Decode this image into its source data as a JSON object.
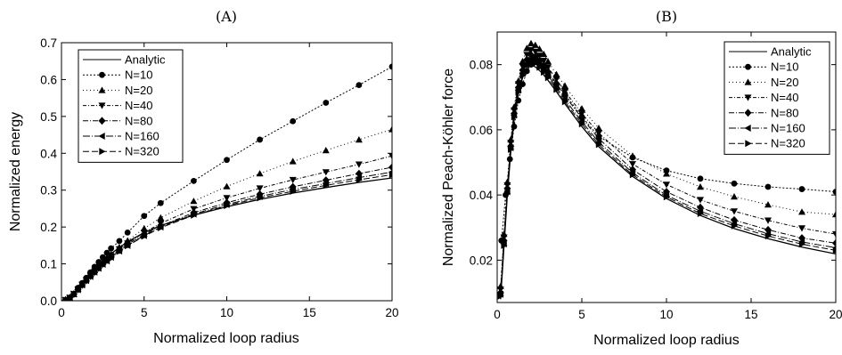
{
  "chart_data": [
    {
      "type": "line",
      "panel_label": "(A)",
      "xlabel": "Normalized loop radius",
      "ylabel": "Normalized energy",
      "xlim": [
        0,
        20
      ],
      "ylim": [
        0,
        0.7
      ],
      "xticks": [
        "0",
        "5",
        "10",
        "15",
        "20"
      ],
      "yticks": [
        "0.0",
        "0.1",
        "0.2",
        "0.3",
        "0.4",
        "0.5",
        "0.6",
        "0.7"
      ],
      "grid": false,
      "legend_position": "top-left",
      "series": [
        {
          "name": "Analytic",
          "marker": "none",
          "dash": "solid",
          "x": [
            0.25,
            0.5,
            0.75,
            1,
            1.5,
            2,
            2.5,
            3,
            4,
            5,
            6,
            8,
            10,
            12,
            14,
            16,
            18,
            20
          ],
          "y": [
            0.002,
            0.008,
            0.018,
            0.03,
            0.06,
            0.085,
            0.108,
            0.128,
            0.16,
            0.185,
            0.204,
            0.232,
            0.255,
            0.275,
            0.292,
            0.307,
            0.321,
            0.333
          ]
        },
        {
          "name": "N=10",
          "marker": "circle",
          "dash": "2,2",
          "x": [
            0.25,
            0.5,
            0.75,
            1,
            1.25,
            1.5,
            1.75,
            2,
            2.25,
            2.5,
            2.75,
            3,
            3.5,
            4,
            5,
            6,
            8,
            10,
            12,
            14,
            16,
            18,
            20
          ],
          "y": [
            0.002,
            0.008,
            0.018,
            0.035,
            0.048,
            0.062,
            0.077,
            0.092,
            0.105,
            0.118,
            0.13,
            0.142,
            0.162,
            0.185,
            0.23,
            0.265,
            0.325,
            0.382,
            0.437,
            0.487,
            0.537,
            0.585,
            0.635
          ]
        },
        {
          "name": "N=20",
          "marker": "triangle-up",
          "dash": "1,3",
          "x": [
            0.25,
            0.5,
            0.75,
            1,
            1.25,
            1.5,
            1.75,
            2,
            2.25,
            2.5,
            2.75,
            3,
            3.5,
            4,
            5,
            6,
            8,
            10,
            12,
            14,
            16,
            18,
            20
          ],
          "y": [
            0.002,
            0.008,
            0.018,
            0.032,
            0.045,
            0.058,
            0.07,
            0.083,
            0.095,
            0.106,
            0.116,
            0.126,
            0.145,
            0.163,
            0.196,
            0.225,
            0.27,
            0.31,
            0.345,
            0.378,
            0.408,
            0.437,
            0.465
          ]
        },
        {
          "name": "N=40",
          "marker": "triangle-down",
          "dash": "4,2,1,2",
          "x": [
            0.25,
            0.5,
            0.75,
            1,
            1.25,
            1.5,
            1.75,
            2,
            2.25,
            2.5,
            2.75,
            3,
            3.5,
            4,
            5,
            6,
            8,
            10,
            12,
            14,
            16,
            18,
            20
          ],
          "y": [
            0.002,
            0.008,
            0.018,
            0.031,
            0.044,
            0.056,
            0.068,
            0.08,
            0.091,
            0.102,
            0.112,
            0.122,
            0.14,
            0.156,
            0.185,
            0.21,
            0.249,
            0.279,
            0.305,
            0.328,
            0.349,
            0.37,
            0.393
          ]
        },
        {
          "name": "N=80",
          "marker": "diamond",
          "dash": "6,2,1,2",
          "x": [
            0.25,
            0.5,
            0.75,
            1,
            1.25,
            1.5,
            1.75,
            2,
            2.25,
            2.5,
            2.75,
            3,
            3.5,
            4,
            5,
            6,
            8,
            10,
            12,
            14,
            16,
            18,
            20
          ],
          "y": [
            0.002,
            0.008,
            0.018,
            0.031,
            0.043,
            0.055,
            0.067,
            0.078,
            0.089,
            0.1,
            0.11,
            0.119,
            0.137,
            0.153,
            0.18,
            0.203,
            0.239,
            0.266,
            0.289,
            0.309,
            0.327,
            0.345,
            0.362
          ]
        },
        {
          "name": "N=160",
          "marker": "triangle-left",
          "dash": "8,2,1,2",
          "x": [
            0.25,
            0.5,
            0.75,
            1,
            1.25,
            1.5,
            1.75,
            2,
            2.25,
            2.5,
            2.75,
            3,
            3.5,
            4,
            5,
            6,
            8,
            10,
            12,
            14,
            16,
            18,
            20
          ],
          "y": [
            0.002,
            0.008,
            0.018,
            0.03,
            0.043,
            0.055,
            0.066,
            0.078,
            0.088,
            0.099,
            0.108,
            0.118,
            0.135,
            0.15,
            0.177,
            0.2,
            0.235,
            0.261,
            0.283,
            0.302,
            0.318,
            0.334,
            0.349
          ]
        },
        {
          "name": "N=320",
          "marker": "triangle-right",
          "dash": "7,3",
          "x": [
            0.25,
            0.5,
            0.75,
            1,
            1.25,
            1.5,
            1.75,
            2,
            2.25,
            2.5,
            2.75,
            3,
            3.5,
            4,
            5,
            6,
            8,
            10,
            12,
            14,
            16,
            18,
            20
          ],
          "y": [
            0.002,
            0.008,
            0.018,
            0.03,
            0.043,
            0.054,
            0.066,
            0.077,
            0.088,
            0.098,
            0.108,
            0.117,
            0.134,
            0.149,
            0.175,
            0.198,
            0.232,
            0.258,
            0.279,
            0.297,
            0.313,
            0.328,
            0.342
          ]
        }
      ]
    },
    {
      "type": "line",
      "panel_label": "(B)",
      "xlabel": "Normalized loop radius",
      "ylabel": "Normalized Peach-Köhler force",
      "xlim": [
        0,
        20
      ],
      "ylim": [
        0.007,
        0.09
      ],
      "xticks": [
        "0",
        "5",
        "10",
        "15",
        "20"
      ],
      "yticks": [
        "0.02",
        "0.04",
        "0.06",
        "0.08"
      ],
      "ytick_values": [
        0.02,
        0.04,
        0.06,
        0.08
      ],
      "grid": false,
      "legend_position": "top-right",
      "series": [
        {
          "name": "Analytic",
          "marker": "none",
          "dash": "solid",
          "x": [
            0.2,
            0.4,
            0.6,
            0.8,
            1,
            1.25,
            1.5,
            1.75,
            2,
            2.25,
            2.5,
            2.75,
            3,
            3.5,
            4,
            5,
            6,
            8,
            10,
            12,
            14,
            16,
            18,
            20
          ],
          "y": [
            0.008,
            0.024,
            0.04,
            0.053,
            0.063,
            0.071,
            0.076,
            0.079,
            0.0798,
            0.0793,
            0.0782,
            0.0768,
            0.0752,
            0.0717,
            0.068,
            0.061,
            0.0548,
            0.0457,
            0.0389,
            0.0337,
            0.0297,
            0.0266,
            0.024,
            0.0219
          ]
        },
        {
          "name": "N=10",
          "marker": "circle",
          "dash": "2,2",
          "x": [
            0.25,
            0.5,
            0.75,
            1,
            1.25,
            1.5,
            1.75,
            2,
            2.25,
            2.5,
            2.75,
            3,
            3.5,
            4,
            5,
            6,
            8,
            10,
            12,
            14,
            16,
            18,
            20
          ],
          "y": [
            0.026,
            0.04,
            0.051,
            0.061,
            0.069,
            0.074,
            0.078,
            0.08,
            0.081,
            0.08,
            0.079,
            0.077,
            0.074,
            0.071,
            0.064,
            0.058,
            0.0515,
            0.0475,
            0.045,
            0.0435,
            0.0425,
            0.0418,
            0.041
          ]
        },
        {
          "name": "N=20",
          "marker": "triangle-up",
          "dash": "1,3",
          "x": [
            0.2,
            0.4,
            0.6,
            0.8,
            1,
            1.25,
            1.5,
            1.75,
            2,
            2.25,
            2.5,
            2.75,
            3,
            3.5,
            4,
            5,
            6,
            8,
            10,
            12,
            14,
            16,
            18,
            20
          ],
          "y": [
            0.012,
            0.028,
            0.044,
            0.057,
            0.067,
            0.075,
            0.081,
            0.085,
            0.0865,
            0.086,
            0.0848,
            0.0832,
            0.081,
            0.077,
            0.0735,
            0.0665,
            0.0605,
            0.052,
            0.0465,
            0.0425,
            0.0395,
            0.037,
            0.0348,
            0.034
          ]
        },
        {
          "name": "N=40",
          "marker": "triangle-down",
          "dash": "4,2,1,2",
          "x": [
            0.2,
            0.4,
            0.6,
            0.8,
            1,
            1.25,
            1.5,
            1.75,
            2,
            2.25,
            2.5,
            2.75,
            3,
            3.5,
            4,
            5,
            6,
            8,
            10,
            12,
            14,
            16,
            18,
            20
          ],
          "y": [
            0.011,
            0.027,
            0.043,
            0.056,
            0.066,
            0.074,
            0.0795,
            0.083,
            0.0845,
            0.084,
            0.0828,
            0.0812,
            0.0792,
            0.0755,
            0.0718,
            0.065,
            0.059,
            0.0495,
            0.0432,
            0.0385,
            0.035,
            0.0322,
            0.0298,
            0.028
          ]
        },
        {
          "name": "N=80",
          "marker": "diamond",
          "dash": "6,2,1,2",
          "x": [
            0.2,
            0.4,
            0.6,
            0.8,
            1,
            1.25,
            1.5,
            1.75,
            2,
            2.25,
            2.5,
            2.75,
            3,
            3.5,
            4,
            5,
            6,
            8,
            10,
            12,
            14,
            16,
            18,
            20
          ],
          "y": [
            0.01,
            0.026,
            0.042,
            0.055,
            0.065,
            0.073,
            0.0783,
            0.0815,
            0.083,
            0.0825,
            0.0813,
            0.0797,
            0.0778,
            0.0742,
            0.0704,
            0.0636,
            0.0573,
            0.0478,
            0.041,
            0.0362,
            0.0323,
            0.0293,
            0.0268,
            0.0252
          ]
        },
        {
          "name": "N=160",
          "marker": "triangle-left",
          "dash": "8,2,1,2",
          "x": [
            0.2,
            0.4,
            0.6,
            0.8,
            1,
            1.25,
            1.5,
            1.75,
            2,
            2.25,
            2.5,
            2.75,
            3,
            3.5,
            4,
            5,
            6,
            8,
            10,
            12,
            14,
            16,
            18,
            20
          ],
          "y": [
            0.0095,
            0.025,
            0.041,
            0.0545,
            0.0645,
            0.0722,
            0.0773,
            0.0805,
            0.0818,
            0.0812,
            0.08,
            0.0785,
            0.0767,
            0.0731,
            0.0693,
            0.0625,
            0.0562,
            0.0468,
            0.0399,
            0.035,
            0.0312,
            0.0281,
            0.0256,
            0.0238
          ]
        },
        {
          "name": "N=320",
          "marker": "triangle-right",
          "dash": "7,3",
          "x": [
            0.2,
            0.4,
            0.6,
            0.8,
            1,
            1.25,
            1.5,
            1.75,
            2,
            2.25,
            2.5,
            2.75,
            3,
            3.5,
            4,
            5,
            6,
            8,
            10,
            12,
            14,
            16,
            18,
            20
          ],
          "y": [
            0.009,
            0.0245,
            0.0405,
            0.054,
            0.064,
            0.0716,
            0.0767,
            0.0798,
            0.081,
            0.0804,
            0.0792,
            0.0777,
            0.076,
            0.0724,
            0.0686,
            0.0618,
            0.0555,
            0.0462,
            0.0394,
            0.0343,
            0.0305,
            0.0274,
            0.0249,
            0.023
          ]
        }
      ]
    }
  ]
}
